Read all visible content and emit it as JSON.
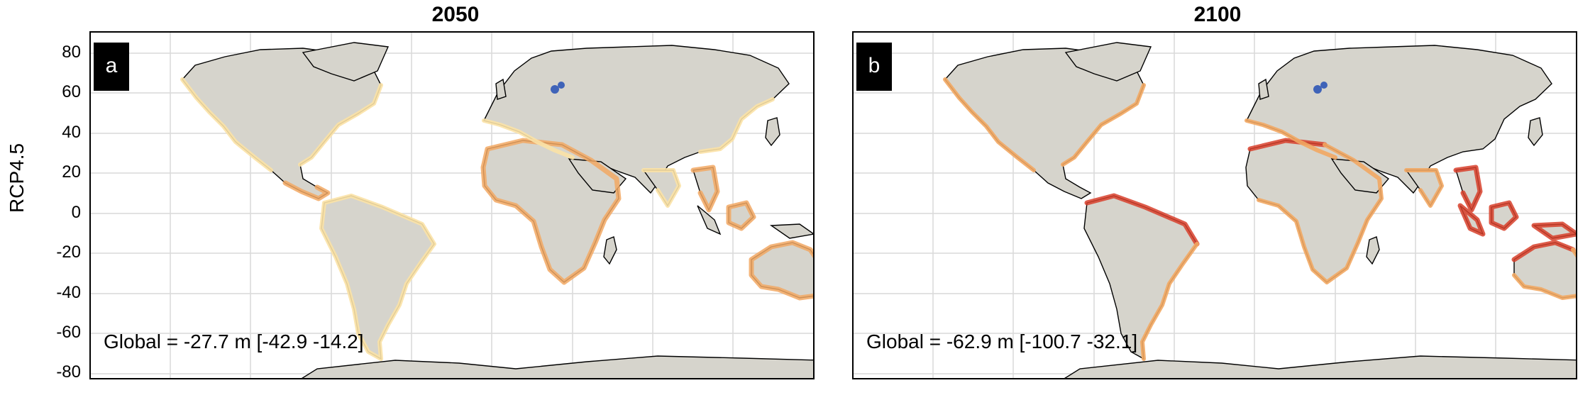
{
  "ylabel": "RCP4.5",
  "yticks": [
    "80",
    "60",
    "40",
    "20",
    "0",
    "-20",
    "-40",
    "-60",
    "-80"
  ],
  "panels": [
    {
      "title": "2050",
      "letter": "a",
      "global_text": "Global = -27.7 m [-42.9 -14.2]"
    },
    {
      "title": "2100",
      "letter": "b",
      "global_text": "Global = -62.9 m [-100.7 -32.1]"
    }
  ],
  "colors": {
    "land": "#d6d4cc",
    "ocean": "#ffffff",
    "grid": "#d9d9d9",
    "low_change": "#fbe2a6",
    "moderate_change": "#f2a863",
    "high_change": "#d8402b",
    "gain": "#3f63b8"
  }
}
